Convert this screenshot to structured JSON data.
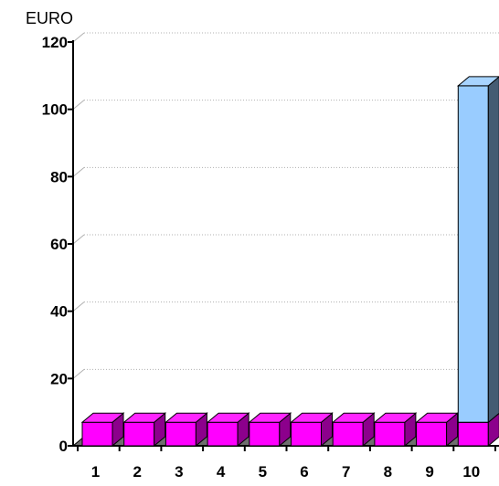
{
  "chart_data": {
    "type": "bar",
    "unit_label": "EURO",
    "categories": [
      "1",
      "2",
      "3",
      "4",
      "5",
      "6",
      "7",
      "8",
      "9",
      "10"
    ],
    "series": [
      {
        "values": [
          7,
          7,
          7,
          7,
          7,
          7,
          7,
          7,
          7,
          7
        ],
        "color": "#ff00ff"
      },
      {
        "values": [
          0,
          0,
          0,
          0,
          0,
          0,
          0,
          0,
          0,
          100
        ],
        "color": "#99ccff"
      }
    ],
    "ylim": [
      0,
      120
    ],
    "yticks": [
      "0",
      "20",
      "40",
      "60",
      "80",
      "100",
      "120"
    ],
    "grid": true,
    "stacked": true,
    "three_d": true
  }
}
